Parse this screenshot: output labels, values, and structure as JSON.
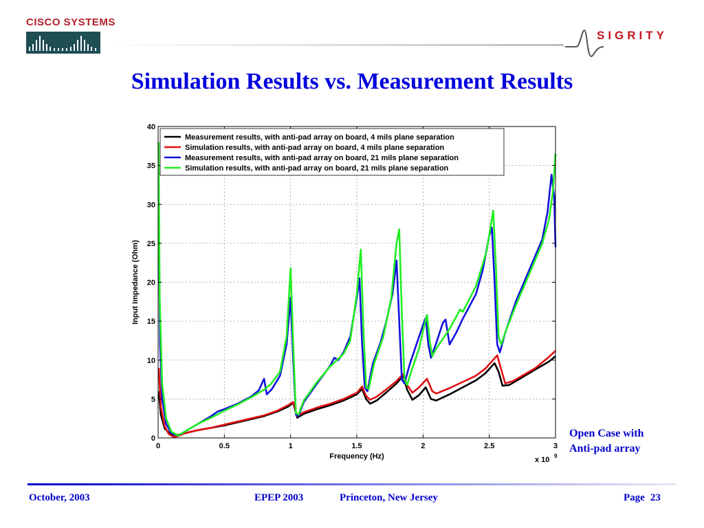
{
  "header": {
    "cisco_logo_text": "CISCO SYSTEMS",
    "sigrity_logo_text": "SIGRITY"
  },
  "slide_title": "Simulation Results vs. Measurement Results",
  "side_note": [
    "Open Case with",
    "Anti-pad array"
  ],
  "footer": {
    "date": "October, 2003",
    "conference": "EPEP 2003",
    "location": "Princeton, New Jersey",
    "page_label": "Page",
    "page_number": "23"
  },
  "colors": {
    "title": "#0000dd",
    "footer": "#0000cc",
    "cisco": "#b01e28",
    "sigrity": "#c2161e"
  },
  "chart_data": {
    "type": "line",
    "title": "",
    "xlabel": "Frequency (Hz)",
    "ylabel": "Input Impedance (Ohm)",
    "x_multiplier_label": "x 10",
    "x_multiplier_exp": "9",
    "xlim": [
      0,
      3
    ],
    "ylim": [
      0,
      40
    ],
    "x_ticks": [
      0,
      0.5,
      1,
      1.5,
      2,
      2.5,
      3
    ],
    "x_tick_labels": [
      "0",
      "0.5",
      "1",
      "1.5",
      "2",
      "2.5",
      "3"
    ],
    "y_ticks": [
      0,
      5,
      10,
      15,
      20,
      25,
      30,
      35,
      40
    ],
    "y_tick_labels": [
      "0",
      "5",
      "10",
      "15",
      "20",
      "25",
      "30",
      "35",
      "40"
    ],
    "grid": true,
    "legend_position": "top",
    "series": [
      {
        "name": "Measurement results, with anti-pad array on board, 4 mils plane separation",
        "color": "#000000",
        "points": [
          [
            0.005,
            6
          ],
          [
            0.02,
            3
          ],
          [
            0.05,
            1.2
          ],
          [
            0.1,
            0.4
          ],
          [
            0.15,
            0.4
          ],
          [
            0.2,
            0.6
          ],
          [
            0.3,
            1.0
          ],
          [
            0.4,
            1.3
          ],
          [
            0.5,
            1.6
          ],
          [
            0.6,
            2.0
          ],
          [
            0.7,
            2.4
          ],
          [
            0.8,
            2.8
          ],
          [
            0.9,
            3.4
          ],
          [
            0.98,
            4.0
          ],
          [
            1.02,
            4.5
          ],
          [
            1.05,
            2.6
          ],
          [
            1.1,
            3.1
          ],
          [
            1.2,
            3.7
          ],
          [
            1.3,
            4.2
          ],
          [
            1.4,
            4.8
          ],
          [
            1.5,
            5.6
          ],
          [
            1.54,
            6.3
          ],
          [
            1.57,
            5.0
          ],
          [
            1.6,
            4.4
          ],
          [
            1.65,
            4.8
          ],
          [
            1.72,
            5.8
          ],
          [
            1.8,
            7.0
          ],
          [
            1.85,
            8.0
          ],
          [
            1.88,
            6.2
          ],
          [
            1.92,
            4.9
          ],
          [
            1.97,
            5.5
          ],
          [
            2.02,
            6.5
          ],
          [
            2.06,
            5.0
          ],
          [
            2.1,
            4.8
          ],
          [
            2.2,
            5.6
          ],
          [
            2.3,
            6.5
          ],
          [
            2.4,
            7.4
          ],
          [
            2.47,
            8.3
          ],
          [
            2.54,
            9.6
          ],
          [
            2.57,
            8.5
          ],
          [
            2.6,
            6.7
          ],
          [
            2.65,
            6.8
          ],
          [
            2.75,
            7.8
          ],
          [
            2.85,
            8.8
          ],
          [
            2.95,
            9.8
          ],
          [
            3.0,
            10.5
          ]
        ]
      },
      {
        "name": "Simulation results, with anti-pad array on board, 4 mils plane separation",
        "color": "#e01010",
        "points": [
          [
            0.005,
            9
          ],
          [
            0.02,
            4
          ],
          [
            0.05,
            1.5
          ],
          [
            0.08,
            0.5
          ],
          [
            0.12,
            0.1
          ],
          [
            0.16,
            0.3
          ],
          [
            0.2,
            0.6
          ],
          [
            0.3,
            1.0
          ],
          [
            0.4,
            1.3
          ],
          [
            0.5,
            1.7
          ],
          [
            0.6,
            2.1
          ],
          [
            0.7,
            2.5
          ],
          [
            0.8,
            2.9
          ],
          [
            0.9,
            3.5
          ],
          [
            0.98,
            4.2
          ],
          [
            1.02,
            4.6
          ],
          [
            1.05,
            2.8
          ],
          [
            1.1,
            3.3
          ],
          [
            1.2,
            3.9
          ],
          [
            1.3,
            4.4
          ],
          [
            1.4,
            5.0
          ],
          [
            1.5,
            5.8
          ],
          [
            1.54,
            6.6
          ],
          [
            1.57,
            5.4
          ],
          [
            1.6,
            4.9
          ],
          [
            1.65,
            5.3
          ],
          [
            1.72,
            6.2
          ],
          [
            1.8,
            7.3
          ],
          [
            1.85,
            8.2
          ],
          [
            1.88,
            6.8
          ],
          [
            1.92,
            5.8
          ],
          [
            1.97,
            6.5
          ],
          [
            2.03,
            7.6
          ],
          [
            2.07,
            6.0
          ],
          [
            2.1,
            5.7
          ],
          [
            2.2,
            6.4
          ],
          [
            2.3,
            7.2
          ],
          [
            2.4,
            8.0
          ],
          [
            2.47,
            8.9
          ],
          [
            2.56,
            10.6
          ],
          [
            2.59,
            8.8
          ],
          [
            2.62,
            7.0
          ],
          [
            2.68,
            7.3
          ],
          [
            2.75,
            8.0
          ],
          [
            2.85,
            9.0
          ],
          [
            2.95,
            10.4
          ],
          [
            3.0,
            11.2
          ]
        ]
      },
      {
        "name": "Measurement results, with anti-pad array on board, 21 mils plane separation",
        "color": "#1010dd",
        "points": [
          [
            0.005,
            28
          ],
          [
            0.015,
            12
          ],
          [
            0.03,
            5
          ],
          [
            0.06,
            1.8
          ],
          [
            0.1,
            0.6
          ],
          [
            0.15,
            0.3
          ],
          [
            0.2,
            0.8
          ],
          [
            0.25,
            1.3
          ],
          [
            0.3,
            1.8
          ],
          [
            0.4,
            2.8
          ],
          [
            0.45,
            3.4
          ],
          [
            0.5,
            3.7
          ],
          [
            0.6,
            4.4
          ],
          [
            0.7,
            5.3
          ],
          [
            0.76,
            6.1
          ],
          [
            0.8,
            7.6
          ],
          [
            0.82,
            5.6
          ],
          [
            0.86,
            6.3
          ],
          [
            0.92,
            8.0
          ],
          [
            0.97,
            12.0
          ],
          [
            1.0,
            18.0
          ],
          [
            1.02,
            10.0
          ],
          [
            1.04,
            3.0
          ],
          [
            1.06,
            2.8
          ],
          [
            1.1,
            4.6
          ],
          [
            1.2,
            7.0
          ],
          [
            1.3,
            9.3
          ],
          [
            1.33,
            10.3
          ],
          [
            1.36,
            10.0
          ],
          [
            1.4,
            11.0
          ],
          [
            1.45,
            13.0
          ],
          [
            1.5,
            18.0
          ],
          [
            1.52,
            20.5
          ],
          [
            1.54,
            12.0
          ],
          [
            1.56,
            6.5
          ],
          [
            1.58,
            6.0
          ],
          [
            1.62,
            9.5
          ],
          [
            1.68,
            12.3
          ],
          [
            1.72,
            14.8
          ],
          [
            1.77,
            18.5
          ],
          [
            1.8,
            22.8
          ],
          [
            1.82,
            15.0
          ],
          [
            1.84,
            7.5
          ],
          [
            1.86,
            7.0
          ],
          [
            1.9,
            9.5
          ],
          [
            1.95,
            12.0
          ],
          [
            2.0,
            14.5
          ],
          [
            2.02,
            15.4
          ],
          [
            2.04,
            12.0
          ],
          [
            2.06,
            10.3
          ],
          [
            2.1,
            12.2
          ],
          [
            2.15,
            14.8
          ],
          [
            2.17,
            15.2
          ],
          [
            2.2,
            12.0
          ],
          [
            2.25,
            13.5
          ],
          [
            2.3,
            15.3
          ],
          [
            2.4,
            18.5
          ],
          [
            2.45,
            21.5
          ],
          [
            2.5,
            26.0
          ],
          [
            2.52,
            27.0
          ],
          [
            2.54,
            20.0
          ],
          [
            2.56,
            12.0
          ],
          [
            2.58,
            11.0
          ],
          [
            2.62,
            13.5
          ],
          [
            2.7,
            17.5
          ],
          [
            2.8,
            21.5
          ],
          [
            2.9,
            25.5
          ],
          [
            2.94,
            29.0
          ],
          [
            2.97,
            33.8
          ],
          [
            2.99,
            31.0
          ],
          [
            3.0,
            24.5
          ]
        ]
      },
      {
        "name": "Simulation results, with anti-pad array on board, 21 mils plane separation",
        "color": "#22ee22",
        "points": [
          [
            0.003,
            38
          ],
          [
            0.012,
            18
          ],
          [
            0.03,
            7
          ],
          [
            0.06,
            2.5
          ],
          [
            0.1,
            0.8
          ],
          [
            0.15,
            0.3
          ],
          [
            0.2,
            0.8
          ],
          [
            0.25,
            1.3
          ],
          [
            0.3,
            1.8
          ],
          [
            0.4,
            2.6
          ],
          [
            0.5,
            3.5
          ],
          [
            0.6,
            4.3
          ],
          [
            0.7,
            5.2
          ],
          [
            0.8,
            6.2
          ],
          [
            0.85,
            6.9
          ],
          [
            0.92,
            8.5
          ],
          [
            0.97,
            13.0
          ],
          [
            1.0,
            21.8
          ],
          [
            1.02,
            12.0
          ],
          [
            1.04,
            3.2
          ],
          [
            1.06,
            3.0
          ],
          [
            1.1,
            4.8
          ],
          [
            1.2,
            7.2
          ],
          [
            1.3,
            9.2
          ],
          [
            1.4,
            10.8
          ],
          [
            1.45,
            12.5
          ],
          [
            1.5,
            18.5
          ],
          [
            1.53,
            24.2
          ],
          [
            1.55,
            14.0
          ],
          [
            1.57,
            6.5
          ],
          [
            1.59,
            6.3
          ],
          [
            1.63,
            9.5
          ],
          [
            1.7,
            13.0
          ],
          [
            1.76,
            18.0
          ],
          [
            1.8,
            25.0
          ],
          [
            1.82,
            26.8
          ],
          [
            1.84,
            16.0
          ],
          [
            1.86,
            7.5
          ],
          [
            1.88,
            6.8
          ],
          [
            1.92,
            9.0
          ],
          [
            1.97,
            11.5
          ],
          [
            2.01,
            14.5
          ],
          [
            2.03,
            15.8
          ],
          [
            2.05,
            12.5
          ],
          [
            2.07,
            10.5
          ],
          [
            2.1,
            11.5
          ],
          [
            2.2,
            14.0
          ],
          [
            2.28,
            16.5
          ],
          [
            2.3,
            16.2
          ],
          [
            2.4,
            19.5
          ],
          [
            2.48,
            24.0
          ],
          [
            2.53,
            29.2
          ],
          [
            2.55,
            22.0
          ],
          [
            2.57,
            13.0
          ],
          [
            2.59,
            12.0
          ],
          [
            2.63,
            14.0
          ],
          [
            2.7,
            17.0
          ],
          [
            2.8,
            21.0
          ],
          [
            2.9,
            25.0
          ],
          [
            2.95,
            28.0
          ],
          [
            2.98,
            31.5
          ],
          [
            3.0,
            36.5
          ]
        ]
      }
    ]
  }
}
